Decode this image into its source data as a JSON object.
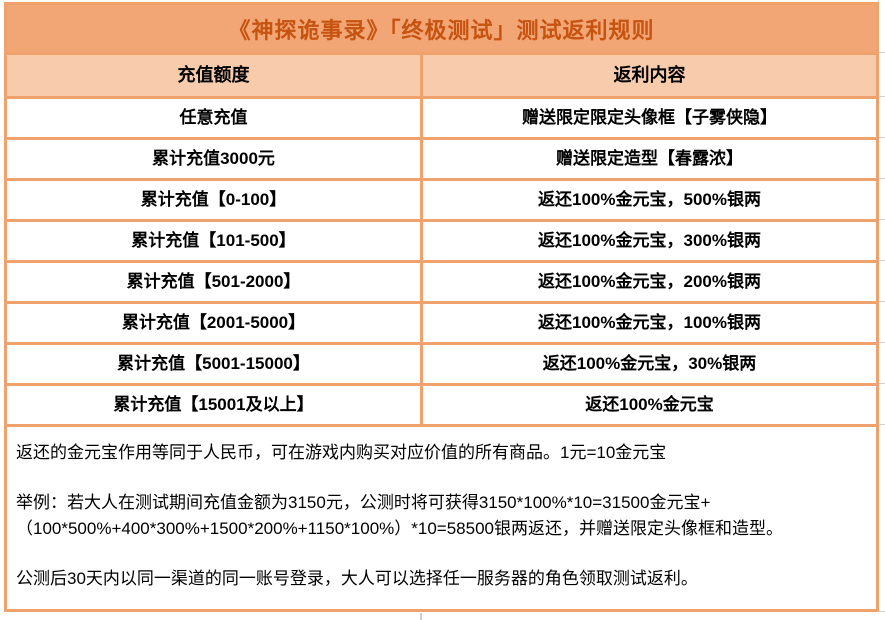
{
  "page": {
    "title": "《神探诡事录》「终极测试」测试返利规则"
  },
  "table": {
    "columns": [
      "充值额度",
      "返利内容"
    ],
    "rows": [
      {
        "tier": "任意充值",
        "rebate": "赠送限定限定头像框【子雾侠隐】"
      },
      {
        "tier": "累计充值3000元",
        "rebate": "赠送限定造型【春露浓】"
      },
      {
        "tier": "累计充值【0-100】",
        "rebate": "返还100%金元宝，500%银两"
      },
      {
        "tier": "累计充值【101-500】",
        "rebate": "返还100%金元宝，300%银两"
      },
      {
        "tier": "累计充值【501-2000】",
        "rebate": "返还100%金元宝，200%银两"
      },
      {
        "tier": "累计充值【2001-5000】",
        "rebate": "返还100%金元宝，100%银两"
      },
      {
        "tier": "累计充值【5001-15000】",
        "rebate": "返还100%金元宝，30%银两"
      },
      {
        "tier": "累计充值【15001及以上】",
        "rebate": "返还100%金元宝"
      }
    ]
  },
  "notes": {
    "paragraphs": [
      {
        "lines": [
          "返还的金元宝作用等同于人民币，可在游戏内购买对应价值的所有商品。1元=10金元宝"
        ]
      },
      {
        "lines": [
          "举例：若大人在测试期间充值金额为3150元，公测时将可获得3150*100%*10=31500金元宝+",
          "（100*500%+400*300%+1500*200%+1150*100%）*10=58500银两返还，并赠送限定头像框和造型。"
        ]
      },
      {
        "lines": [
          "公测后30天内以同一渠道的同一账号登录，大人可以选择任一服务器的角色领取测试返利。"
        ]
      }
    ]
  },
  "colors": {
    "title_bg": "#F2A676",
    "title_text": "#C75310",
    "header_bg": "#F8CBAC",
    "border": "#F0A26C",
    "cell_text": "#000000",
    "gridline": "#CFCFCF"
  }
}
